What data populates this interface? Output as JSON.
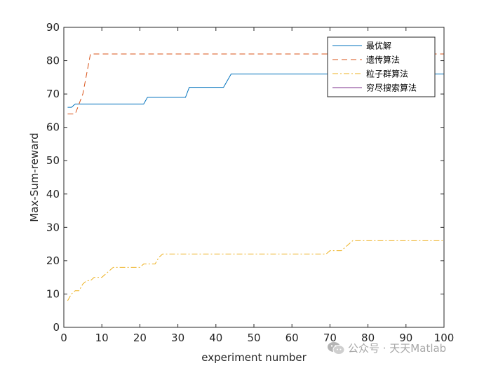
{
  "chart_data": {
    "type": "line",
    "xlabel": "experiment number",
    "ylabel": "Max-Sum-reward",
    "xlim": [
      0,
      100
    ],
    "ylim": [
      0,
      90
    ],
    "xticks": [
      0,
      10,
      20,
      30,
      40,
      50,
      60,
      70,
      80,
      90,
      100
    ],
    "yticks": [
      0,
      10,
      20,
      30,
      40,
      50,
      60,
      70,
      80,
      90
    ],
    "grid": false,
    "legend_position": "top-right",
    "series": [
      {
        "name": "最优解",
        "color": "#0072BD",
        "dash": "solid",
        "x": [
          1,
          2,
          3,
          21,
          22,
          32,
          33,
          42,
          44,
          100
        ],
        "y": [
          66,
          66,
          67,
          67,
          69,
          69,
          72,
          72,
          76,
          76
        ]
      },
      {
        "name": "遗传算法",
        "color": "#D95319",
        "dash": "dashed",
        "x": [
          1,
          3,
          5,
          7,
          100
        ],
        "y": [
          64,
          64,
          70,
          82,
          82
        ]
      },
      {
        "name": "粒子群算法",
        "color": "#EDB120",
        "dash": "dashdot",
        "x": [
          1,
          2,
          3,
          4,
          5,
          6,
          7,
          8,
          9,
          10,
          11,
          12,
          13,
          14,
          20,
          21,
          24,
          25,
          26,
          27,
          69,
          70,
          71,
          73,
          74,
          75,
          76,
          77,
          78,
          100
        ],
        "y": [
          8,
          10,
          11,
          11,
          13,
          14,
          14,
          15,
          15,
          15,
          16,
          17,
          18,
          18,
          18,
          19,
          19,
          21,
          22,
          22,
          22,
          23,
          23,
          23,
          24,
          25,
          26,
          26,
          26,
          26
        ]
      },
      {
        "name": "穷尽搜索算法",
        "color": "#7E2F8E",
        "dash": "solid",
        "x": [],
        "y": []
      }
    ]
  },
  "watermark": {
    "text": "公众号 · 天天Matlab",
    "icon": "wechat-icon"
  }
}
